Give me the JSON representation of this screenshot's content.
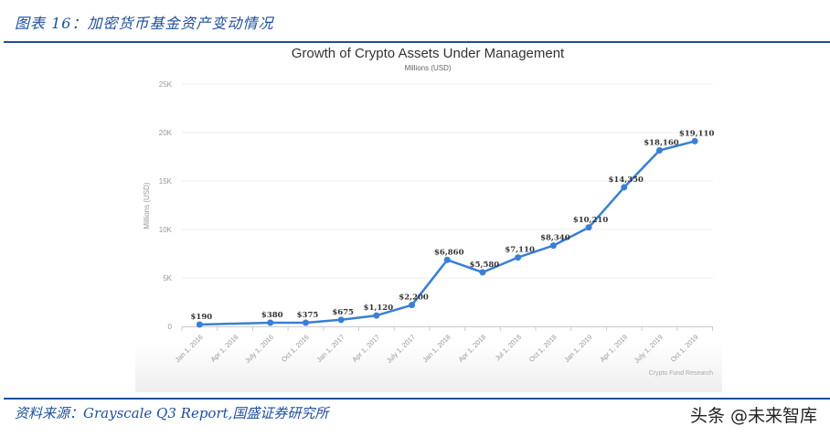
{
  "figure": {
    "title": "图表 16：加密货币基金资产变动情况",
    "source": "资料来源：Grayscale Q3 Report,国盛证券研究所",
    "watermark": "头条 @未来智库"
  },
  "colors": {
    "rule": "#1f4e9b",
    "line": "#3a7fd5",
    "grid": "#ececec",
    "axis_text": "#999999"
  },
  "chart_data": {
    "type": "line",
    "title": "Growth of Crypto Assets Under Management",
    "subtitle": "Millions (USD)",
    "xlabel": "",
    "ylabel": "Millions (USD)",
    "ylim": [
      0,
      25000
    ],
    "yticks": [
      0,
      5000,
      10000,
      15000,
      20000,
      25000
    ],
    "ytick_labels": [
      "0",
      "5K",
      "10K",
      "15K",
      "20K",
      "25K"
    ],
    "grid": true,
    "credit": "Crypto Fund Research",
    "categories": [
      "Jan 1, 2016",
      "Apr 1, 2016",
      "July 1, 2016",
      "Oct 1, 2016",
      "Jan 1, 2017",
      "Apr 1, 2017",
      "July 1, 2017",
      "Jan 1, 2018",
      "Apr 1, 2018",
      "Jul 1, 2018",
      "Oct 1, 2018",
      "Jan 1, 2019",
      "Apr 1, 2019",
      "July 1, 2019",
      "Oct 1, 2019"
    ],
    "series": [
      {
        "name": "Crypto Assets Under Management",
        "points": [
          {
            "x": "Jan 1, 2016",
            "idx": 0,
            "value": 190,
            "label": "$190"
          },
          {
            "x": "July 1, 2016",
            "idx": 2,
            "value": 380,
            "label": "$380"
          },
          {
            "x": "Oct 1, 2016",
            "idx": 3,
            "value": 375,
            "label": "$375"
          },
          {
            "x": "Jan 1, 2017",
            "idx": 4,
            "value": 675,
            "label": "$675"
          },
          {
            "x": "Apr 1, 2017",
            "idx": 5,
            "value": 1120,
            "label": "$1,120"
          },
          {
            "x": "July 1, 2017",
            "idx": 6,
            "value": 2200,
            "label": "$2,200"
          },
          {
            "x": "Jan 1, 2018",
            "idx": 7,
            "value": 6860,
            "label": "$6,860"
          },
          {
            "x": "Apr 1, 2018",
            "idx": 8,
            "value": 5580,
            "label": "$5,580"
          },
          {
            "x": "Jul 1, 2018",
            "idx": 9,
            "value": 7110,
            "label": "$7,110"
          },
          {
            "x": "Oct 1, 2018",
            "idx": 10,
            "value": 8340,
            "label": "$8,340"
          },
          {
            "x": "Jan 1, 2019",
            "idx": 11,
            "value": 10210,
            "label": "$10,210"
          },
          {
            "x": "Apr 1, 2019",
            "idx": 12,
            "value": 14350,
            "label": "$14,350"
          },
          {
            "x": "July 1, 2019",
            "idx": 13,
            "value": 18160,
            "label": "$18,160"
          },
          {
            "x": "Oct 1, 2019",
            "idx": 14,
            "value": 19110,
            "label": "$19,110"
          }
        ]
      }
    ]
  }
}
